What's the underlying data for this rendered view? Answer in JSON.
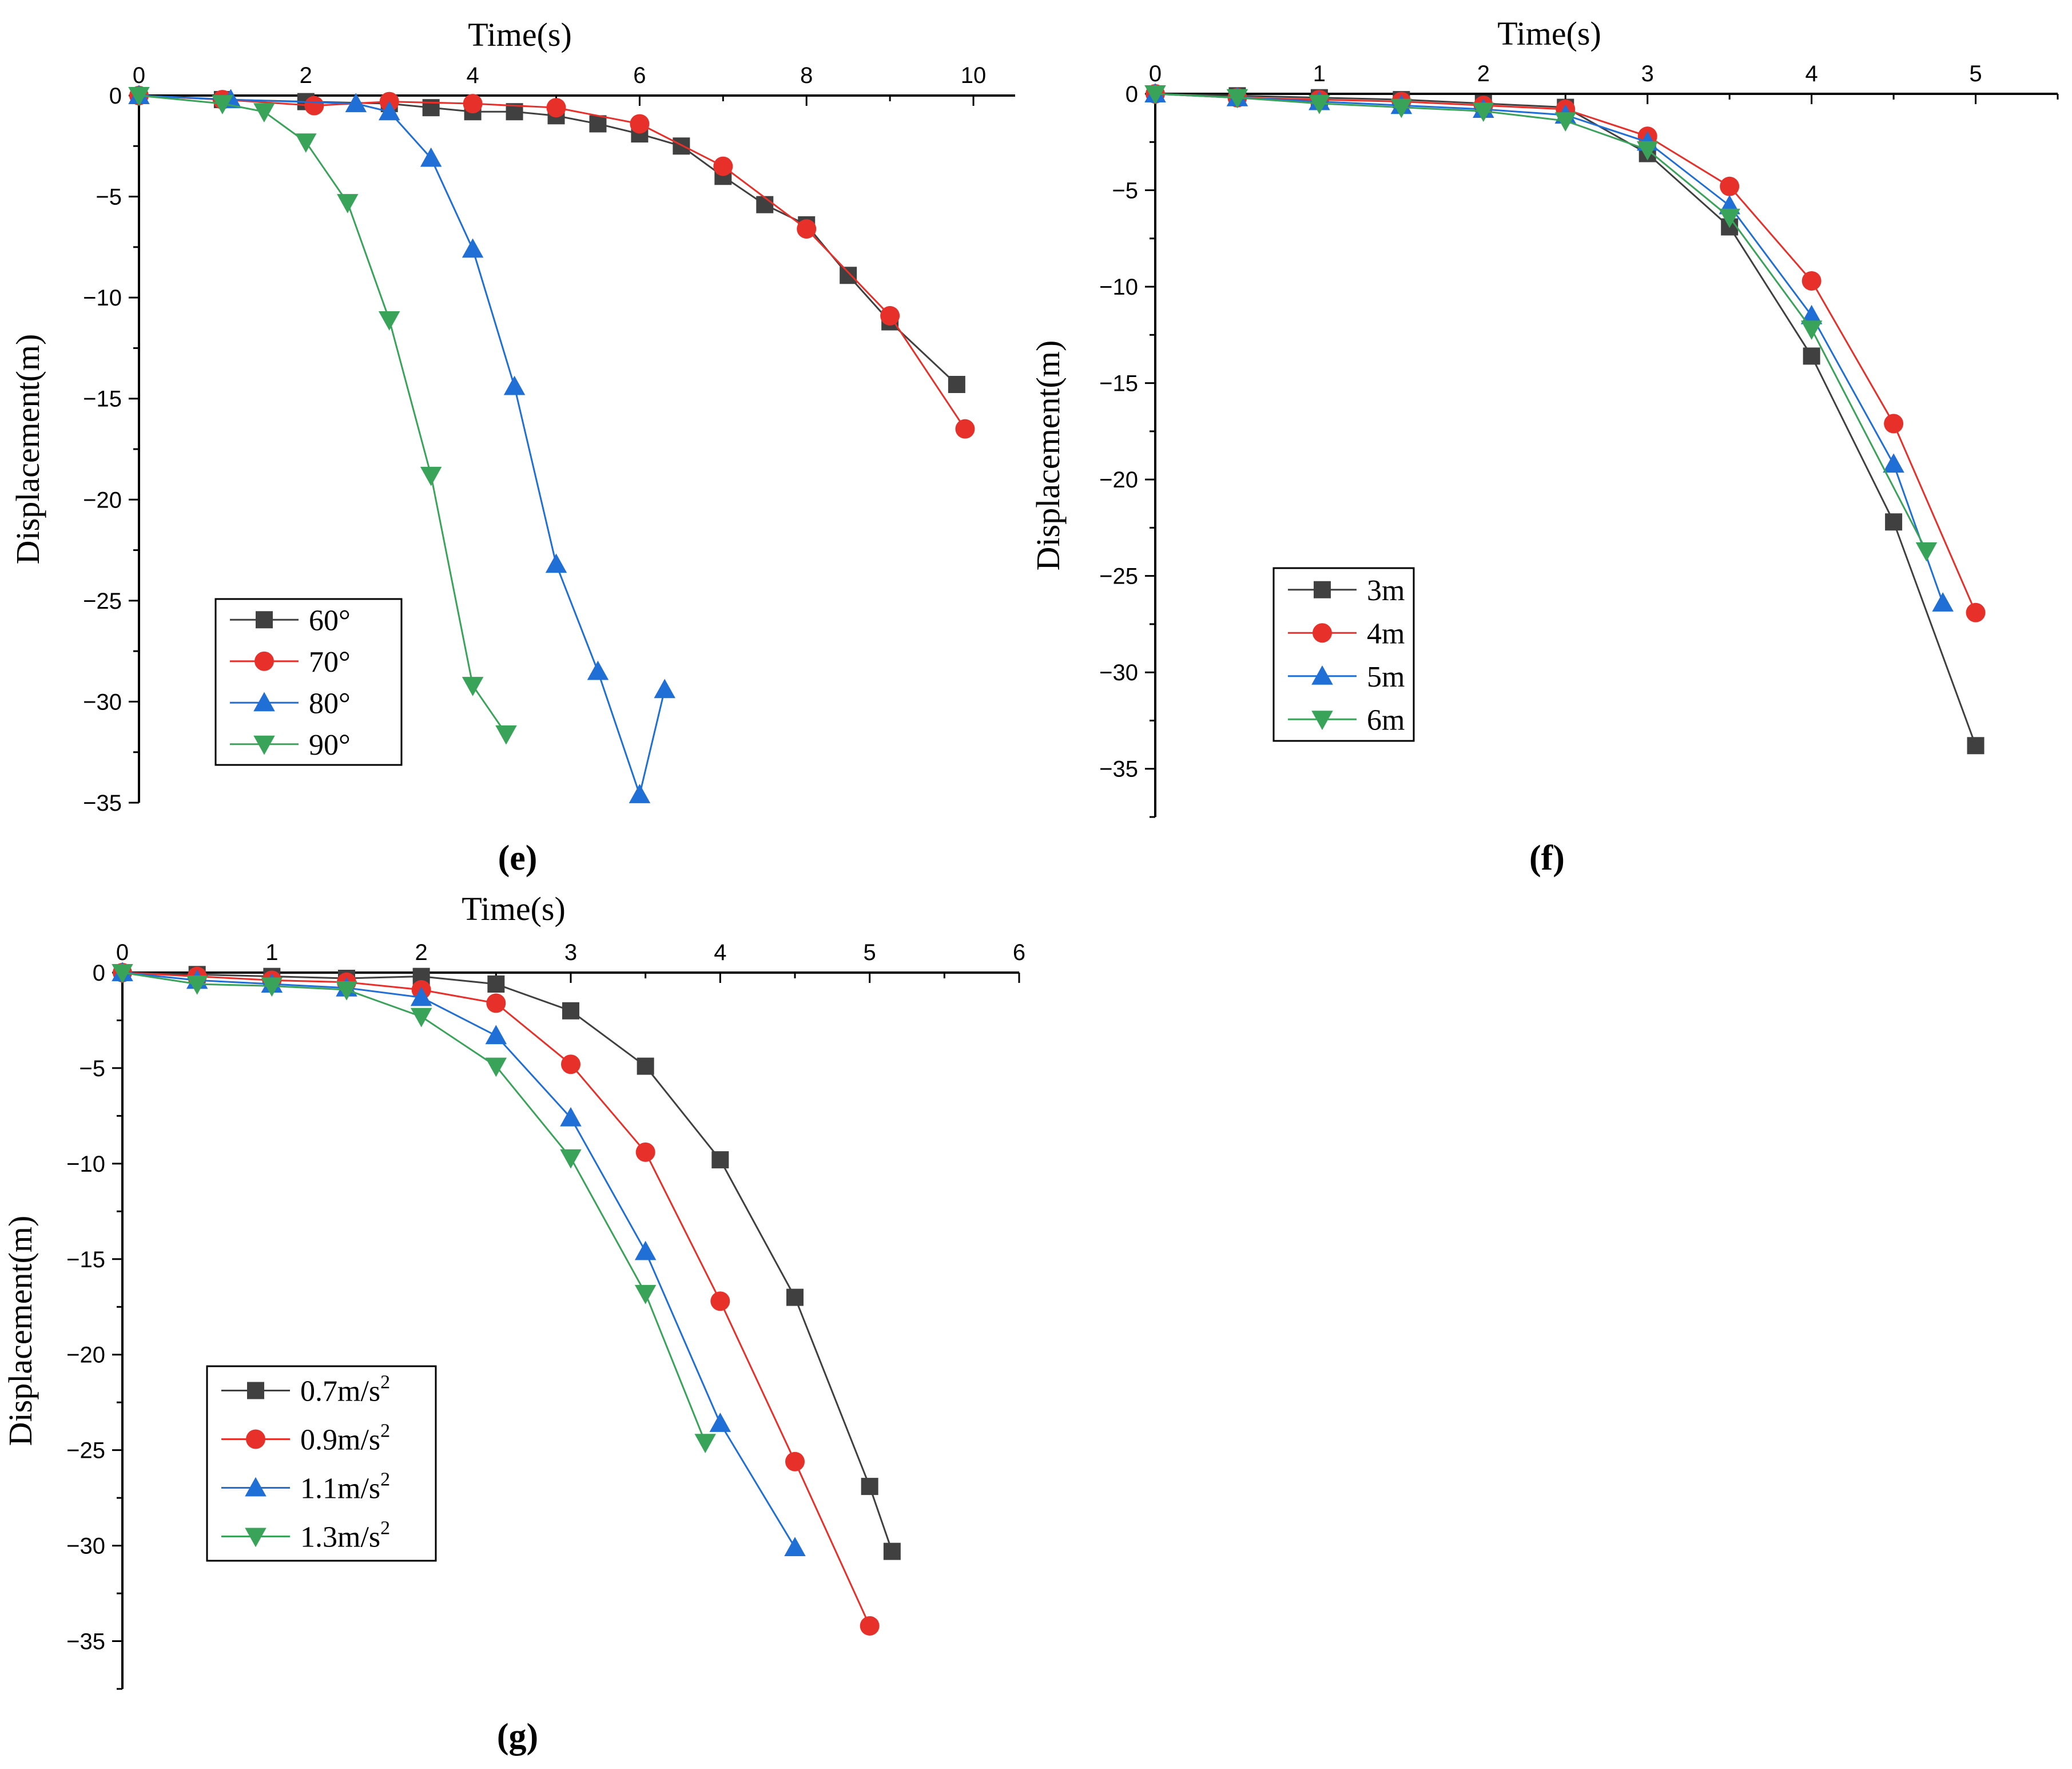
{
  "chart_data": [
    {
      "id": "e",
      "type": "line",
      "panel_label": "(e)",
      "xlabel": "Time(s)",
      "ylabel": "Displacement(m)",
      "xlim": [
        0,
        10.5
      ],
      "ylim": [
        -35,
        0
      ],
      "xticks": [
        0,
        2,
        4,
        6,
        8,
        10
      ],
      "yticks": [
        0,
        -5,
        -10,
        -15,
        -20,
        -25,
        -30,
        -35
      ],
      "legend_position": "bottom-left",
      "series": [
        {
          "name": "60°",
          "color": "#404040",
          "marker": "square",
          "x": [
            0,
            1,
            2,
            3,
            3.5,
            4,
            4.5,
            5,
            5.5,
            6,
            6.5,
            7,
            7.5,
            8,
            8.5,
            9,
            9.8
          ],
          "y": [
            0,
            -0.2,
            -0.3,
            -0.4,
            -0.6,
            -0.8,
            -0.8,
            -1.0,
            -1.4,
            -1.9,
            -2.5,
            -4.0,
            -5.4,
            -6.4,
            -8.9,
            -11.2,
            -14.3
          ]
        },
        {
          "name": "70°",
          "color": "#e8302b",
          "marker": "circle",
          "x": [
            0,
            1,
            2.1,
            3,
            4,
            5,
            6,
            7,
            8,
            9,
            9.9
          ],
          "y": [
            0,
            -0.2,
            -0.5,
            -0.3,
            -0.4,
            -0.6,
            -1.4,
            -3.5,
            -6.6,
            -10.9,
            -16.5
          ]
        },
        {
          "name": "80°",
          "color": "#1f6fd6",
          "marker": "triangle-up",
          "x": [
            0,
            1.1,
            2.6,
            3,
            3.5,
            4,
            4.5,
            5,
            5.5,
            6,
            6.3
          ],
          "y": [
            0,
            -0.2,
            -0.4,
            -0.8,
            -3.1,
            -7.6,
            -14.4,
            -23.2,
            -28.5,
            -34.6,
            -29.4
          ]
        },
        {
          "name": "90°",
          "color": "#3aa35a",
          "marker": "triangle-down",
          "x": [
            0,
            1,
            1.5,
            2,
            2.5,
            3,
            3.5,
            4,
            4.4
          ],
          "y": [
            0,
            -0.4,
            -0.8,
            -2.3,
            -5.3,
            -11.1,
            -18.8,
            -29.2,
            -31.6
          ]
        }
      ]
    },
    {
      "id": "f",
      "type": "line",
      "panel_label": "(f)",
      "xlabel": "Time(s)",
      "ylabel": "Displacement(m)",
      "xlim": [
        0,
        5.5
      ],
      "ylim": [
        -37.5,
        0
      ],
      "xticks": [
        0,
        1,
        2,
        3,
        4,
        5
      ],
      "yticks": [
        0,
        -5,
        -10,
        -15,
        -20,
        -25,
        -30,
        -35
      ],
      "legend_position": "lower-left",
      "series": [
        {
          "name": "3m",
          "color": "#404040",
          "marker": "square",
          "x": [
            0,
            0.5,
            1,
            1.5,
            2,
            2.5,
            3,
            3.5,
            4,
            4.5,
            5
          ],
          "y": [
            0,
            -0.1,
            -0.2,
            -0.3,
            -0.5,
            -0.7,
            -3.1,
            -6.9,
            -13.6,
            -22.2,
            -33.8
          ]
        },
        {
          "name": "4m",
          "color": "#e8302b",
          "marker": "circle",
          "x": [
            0,
            0.5,
            1,
            1.5,
            2,
            2.5,
            3,
            3.5,
            4,
            4.5,
            5
          ],
          "y": [
            0,
            -0.2,
            -0.3,
            -0.4,
            -0.6,
            -0.8,
            -2.2,
            -4.8,
            -9.7,
            -17.1,
            -26.9
          ]
        },
        {
          "name": "5m",
          "color": "#1f6fd6",
          "marker": "triangle-up",
          "x": [
            0,
            0.5,
            1,
            1.5,
            2,
            2.5,
            3,
            3.5,
            4,
            4.5,
            4.8
          ],
          "y": [
            0,
            -0.2,
            -0.4,
            -0.6,
            -0.8,
            -1.1,
            -2.5,
            -5.8,
            -11.5,
            -19.2,
            -26.4
          ]
        },
        {
          "name": "6m",
          "color": "#3aa35a",
          "marker": "triangle-down",
          "x": [
            0,
            0.5,
            1,
            1.5,
            2,
            2.5,
            3,
            3.5,
            4,
            4.7
          ],
          "y": [
            0,
            -0.2,
            -0.5,
            -0.7,
            -0.9,
            -1.4,
            -2.9,
            -6.4,
            -12.2,
            -23.7
          ]
        }
      ]
    },
    {
      "id": "g",
      "type": "line",
      "panel_label": "(g)",
      "xlabel": "Time(s)",
      "ylabel": "Displacement(m)",
      "xlim": [
        0,
        6
      ],
      "ylim": [
        -37.5,
        0
      ],
      "xticks": [
        0,
        1,
        2,
        3,
        4,
        5,
        6
      ],
      "yticks": [
        0,
        -5,
        -10,
        -15,
        -20,
        -25,
        -30,
        -35
      ],
      "legend_position": "lower-left",
      "series": [
        {
          "name": "0.7m/s",
          "sup": "2",
          "color": "#404040",
          "marker": "square",
          "x": [
            0,
            0.5,
            1,
            1.5,
            2,
            2.5,
            3,
            3.5,
            4,
            4.5,
            5,
            5.15
          ],
          "y": [
            0,
            -0.1,
            -0.2,
            -0.3,
            -0.2,
            -0.6,
            -2.0,
            -4.9,
            -9.8,
            -17.0,
            -26.9,
            -30.3
          ]
        },
        {
          "name": "0.9m/s",
          "sup": "2",
          "color": "#e8302b",
          "marker": "circle",
          "x": [
            0,
            0.5,
            1,
            1.5,
            2,
            2.5,
            3,
            3.5,
            4,
            4.5,
            5
          ],
          "y": [
            0,
            -0.2,
            -0.4,
            -0.5,
            -0.9,
            -1.6,
            -4.8,
            -9.4,
            -17.2,
            -25.6,
            -34.2
          ]
        },
        {
          "name": "1.1m/s",
          "sup": "2",
          "color": "#1f6fd6",
          "marker": "triangle-up",
          "x": [
            0,
            0.5,
            1,
            1.5,
            2,
            2.5,
            3,
            3.5,
            4,
            4.5
          ],
          "y": [
            0,
            -0.4,
            -0.6,
            -0.8,
            -1.3,
            -3.3,
            -7.6,
            -14.6,
            -23.6,
            -30.1
          ]
        },
        {
          "name": "1.3m/s",
          "sup": "2",
          "color": "#3aa35a",
          "marker": "triangle-down",
          "x": [
            0,
            0.5,
            1,
            1.5,
            2,
            2.5,
            3,
            3.5,
            3.9
          ],
          "y": [
            0,
            -0.6,
            -0.7,
            -0.9,
            -2.3,
            -4.9,
            -9.7,
            -16.8,
            -24.6
          ]
        }
      ]
    }
  ]
}
